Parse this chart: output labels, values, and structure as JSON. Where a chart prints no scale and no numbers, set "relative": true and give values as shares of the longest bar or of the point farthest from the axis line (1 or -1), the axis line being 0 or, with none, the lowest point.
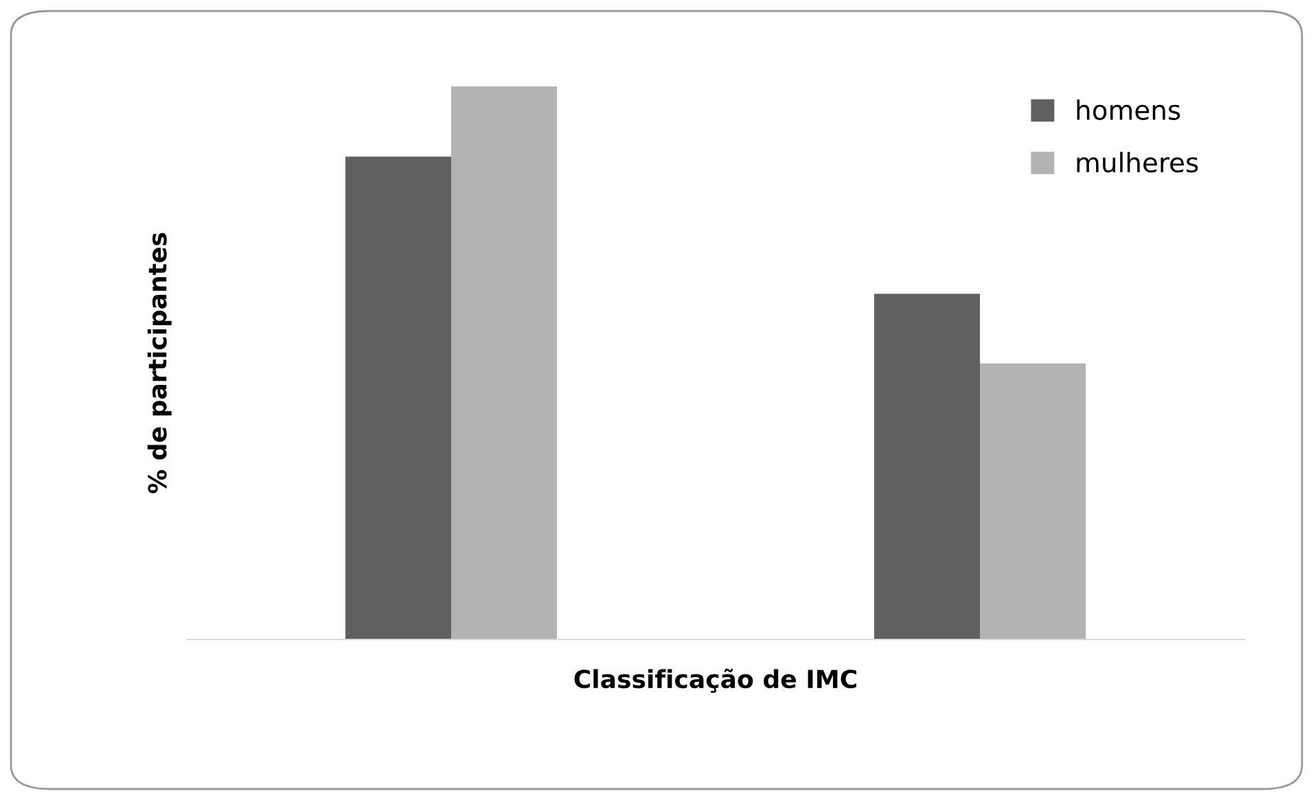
{
  "chart_data": {
    "type": "bar",
    "relative": true,
    "xlabel": "Classificação de IMC",
    "ylabel": "% de participantes",
    "categories": [
      null,
      null
    ],
    "series": [
      {
        "name": "homens",
        "color": "#606060",
        "values": [
          0.873,
          0.625
        ]
      },
      {
        "name": "mulheres",
        "color": "#b3b3b3",
        "values": [
          1,
          0.499
        ]
      }
    ],
    "legend": "top right",
    "grid": false
  }
}
